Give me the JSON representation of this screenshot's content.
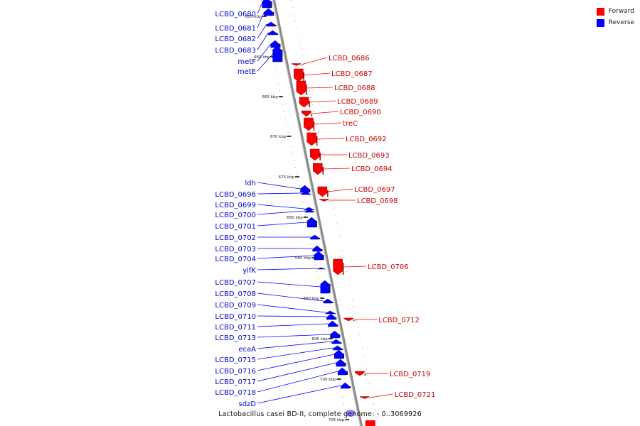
{
  "legend": {
    "forward": {
      "label": "Forward",
      "color": "#ff0000"
    },
    "reverse": {
      "label": "Reverse",
      "color": "#0000ff"
    }
  },
  "footer": {
    "title": "Lactobacillus casei BD-II, complete genome: - 0..3069926"
  },
  "ticks": [
    "655 kbp",
    "660 kbp",
    "665 kbp",
    "670 kbp",
    "675 kbp",
    "680 kbp",
    "685 kbp",
    "690 kbp",
    "695 kbp",
    "700 kbp",
    "705 kbp"
  ],
  "genes_reverse": [
    "LCBD_0680",
    "LCBD_0681",
    "LCBD_0682",
    "LCBD_0683",
    "metF",
    "metE",
    "ldh",
    "LCBD_0696",
    "LCBD_0699",
    "LCBD_0700",
    "LCBD_0701",
    "LCBD_0702",
    "LCBD_0703",
    "LCBD_0704",
    "yifK",
    "LCBD_0707",
    "LCBD_0708",
    "LCBD_0709",
    "LCBD_0710",
    "LCBD_0711",
    "LCBD_0713",
    "ecaA",
    "LCBD_0715",
    "LCBD_0716",
    "LCBD_0717",
    "LCBD_0718",
    "sdzD"
  ],
  "genes_forward": [
    "LCBD_0686",
    "LCBD_0687",
    "LCBD_0688",
    "LCBD_0689",
    "LCBD_0690",
    "treC",
    "LCBD_0692",
    "LCBD_0693",
    "LCBD_0694",
    "LCBD_0697",
    "LCBD_0698",
    "LCBD_0706",
    "LCBD_0712",
    "LCBD_0719",
    "LCBD_0721"
  ]
}
